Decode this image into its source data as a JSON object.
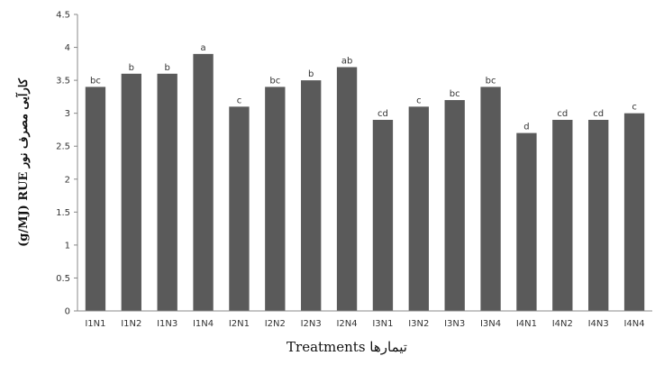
{
  "chart_data": {
    "type": "bar",
    "xlabel": "Treatments تیمارها",
    "ylabel": "(g/MJ) RUE کارآیی مصرف نور",
    "ylim": [
      0,
      4.5
    ],
    "yticks": [
      "0",
      "0.5",
      "1",
      "1.5",
      "2",
      "2.5",
      "3",
      "3.5",
      "4",
      "4.5"
    ],
    "grid": false,
    "legend": "none",
    "bar_color": "#5a5a5a",
    "categories": [
      "I1N1",
      "I1N2",
      "I1N3",
      "I1N4",
      "I2N1",
      "I2N2",
      "I2N3",
      "I2N4",
      "I3N1",
      "I3N2",
      "I3N3",
      "I3N4",
      "I4N1",
      "I4N2",
      "I4N3",
      "I4N4"
    ],
    "values": [
      3.4,
      3.6,
      3.6,
      3.9,
      3.1,
      3.4,
      3.5,
      3.7,
      2.9,
      3.1,
      3.2,
      3.4,
      2.7,
      2.9,
      2.9,
      3.0
    ],
    "bar_labels": [
      "bc",
      "b",
      "b",
      "a",
      "c",
      "bc",
      "b",
      "ab",
      "cd",
      "c",
      "bc",
      "bc",
      "d",
      "cd",
      "cd",
      "c"
    ]
  }
}
